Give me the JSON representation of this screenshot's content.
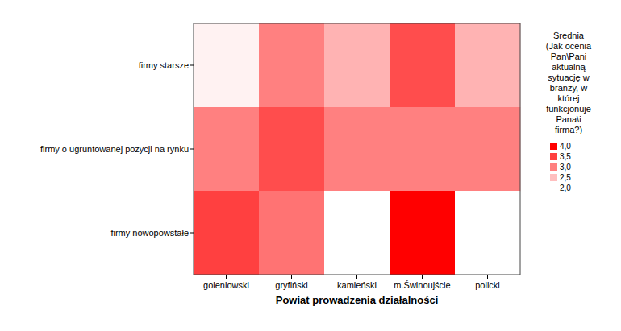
{
  "chart_data": {
    "type": "heatmap",
    "x_label": "Powiat prowadzenia działalności",
    "categories": [
      "goleniowski",
      "gryfiński",
      "kamieński",
      "m.Świnoujście",
      "policki"
    ],
    "y_categories": [
      "firmy starsze",
      "firmy o ugruntowanej pozycji na rynku",
      "firmy nowopowstałe"
    ],
    "values": [
      [
        2.1,
        3.0,
        2.6,
        3.4,
        2.6
      ],
      [
        3.0,
        3.4,
        3.0,
        3.0,
        3.0
      ],
      [
        3.5,
        3.1,
        2.0,
        4.0,
        2.0
      ]
    ],
    "color": "#ff0000",
    "colorbar": {
      "title": "Średnia (Jak ocenia Pan\\Pani aktualną sytuację w branży, w której funkcjonuje Pana\\i firma?)",
      "range": [
        2,
        4
      ],
      "ticks": [
        {
          "value": 4,
          "label": "4,0"
        },
        {
          "value": 3.5,
          "label": "3,5"
        },
        {
          "value": 3,
          "label": "3,0"
        },
        {
          "value": 2.5,
          "label": "2,5"
        },
        {
          "value": 2,
          "label": "2,0"
        }
      ]
    }
  }
}
